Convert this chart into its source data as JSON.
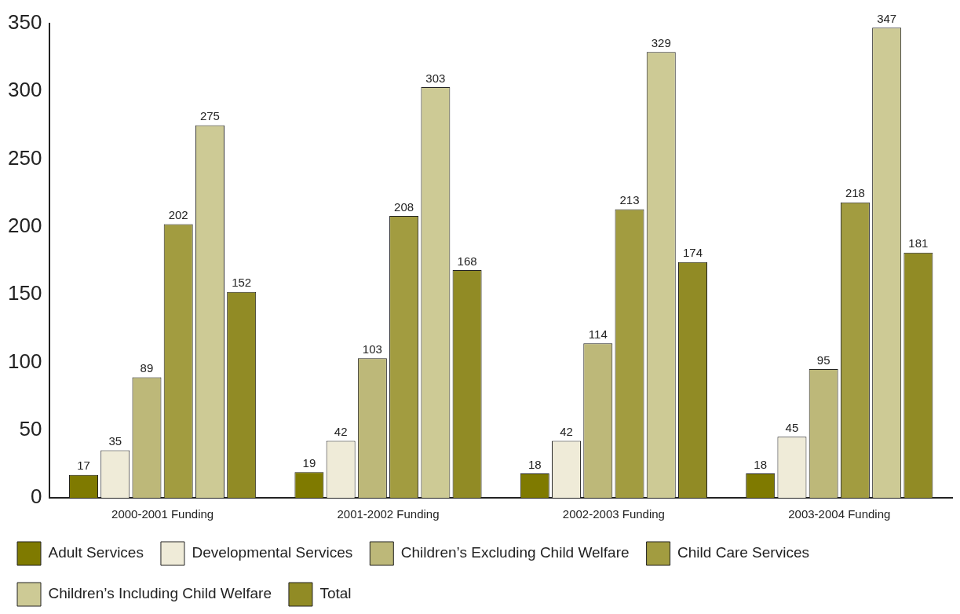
{
  "chart_data": {
    "type": "bar",
    "categories": [
      "2000-2001 Funding",
      "2001-2002 Funding",
      "2002-2003 Funding",
      "2003-2004 Funding"
    ],
    "series": [
      {
        "name": "Adult Services",
        "color": "#7f7a00",
        "values": [
          17,
          19,
          18,
          18
        ]
      },
      {
        "name": "Developmental Services",
        "color": "#efebd8",
        "values": [
          35,
          42,
          42,
          45
        ]
      },
      {
        "name": "Children’s Excluding Child Welfare",
        "color": "#bdb879",
        "values": [
          89,
          103,
          114,
          95
        ]
      },
      {
        "name": "Child Care Services",
        "color": "#a29c40",
        "values": [
          202,
          208,
          213,
          218
        ]
      },
      {
        "name": "Children’s Including Child Welfare",
        "color": "#cdca95",
        "values": [
          275,
          303,
          329,
          347
        ]
      },
      {
        "name": "Total",
        "color": "#918b25",
        "values": [
          152,
          168,
          174,
          181
        ]
      }
    ],
    "ylim": [
      0,
      350
    ],
    "yticks": [
      0,
      50,
      100,
      150,
      200,
      250,
      300,
      350
    ],
    "grid": false,
    "legend": "bottom",
    "data_labels": true
  }
}
